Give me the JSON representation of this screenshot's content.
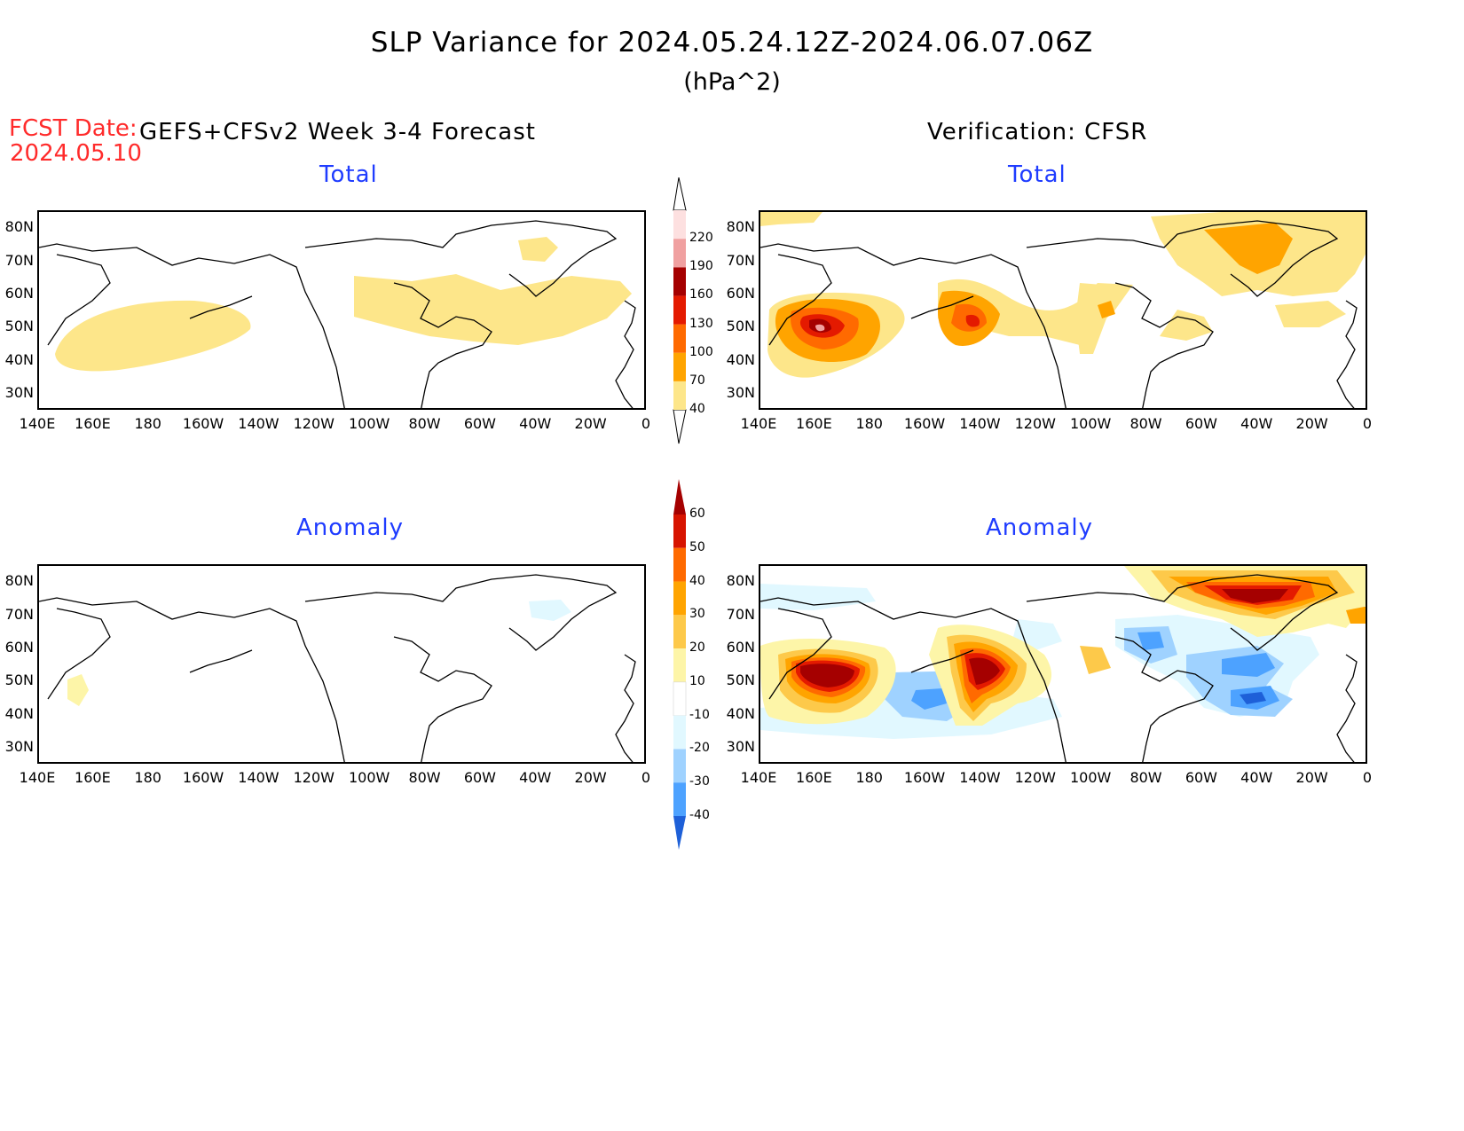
{
  "header": {
    "title": "SLP Variance for 2024.05.24.12Z-2024.06.07.06Z",
    "units": "(hPa^2)",
    "fcst_label": "FCST Date:",
    "fcst_date": "2024.05.10",
    "left_header": "GEFS+CFSv2 Week 3-4 Forecast",
    "right_header": "Verification: CFSR"
  },
  "panels": {
    "fcst_total_title": "Total",
    "obs_total_title": "Total",
    "fcst_anom_title": "Anomaly",
    "obs_anom_title": "Anomaly"
  },
  "axes": {
    "lat_labels": [
      "80N",
      "70N",
      "60N",
      "50N",
      "40N",
      "30N"
    ],
    "lon_labels": [
      "140E",
      "160E",
      "180",
      "160W",
      "140W",
      "120W",
      "100W",
      "80W",
      "60W",
      "40W",
      "20W",
      "0"
    ]
  },
  "colorbars": {
    "total": {
      "levels": [
        "40",
        "70",
        "100",
        "130",
        "160",
        "190",
        "220"
      ],
      "colors": [
        "#fde68a",
        "#ffa400",
        "#ff6a00",
        "#e41a00",
        "#a50000",
        "#f0a0a0",
        "#fde0e0"
      ]
    },
    "anomaly": {
      "levels": [
        "60",
        "50",
        "40",
        "30",
        "20",
        "10",
        "-10",
        "-20",
        "-30",
        "-40"
      ],
      "colors": [
        "#a50000",
        "#d71400",
        "#ff6a00",
        "#ffa400",
        "#fdc94a",
        "#fdf5a8",
        "#ffffff",
        "#e1f8ff",
        "#9fd2ff",
        "#4da2ff",
        "#1e60d8"
      ]
    }
  }
}
